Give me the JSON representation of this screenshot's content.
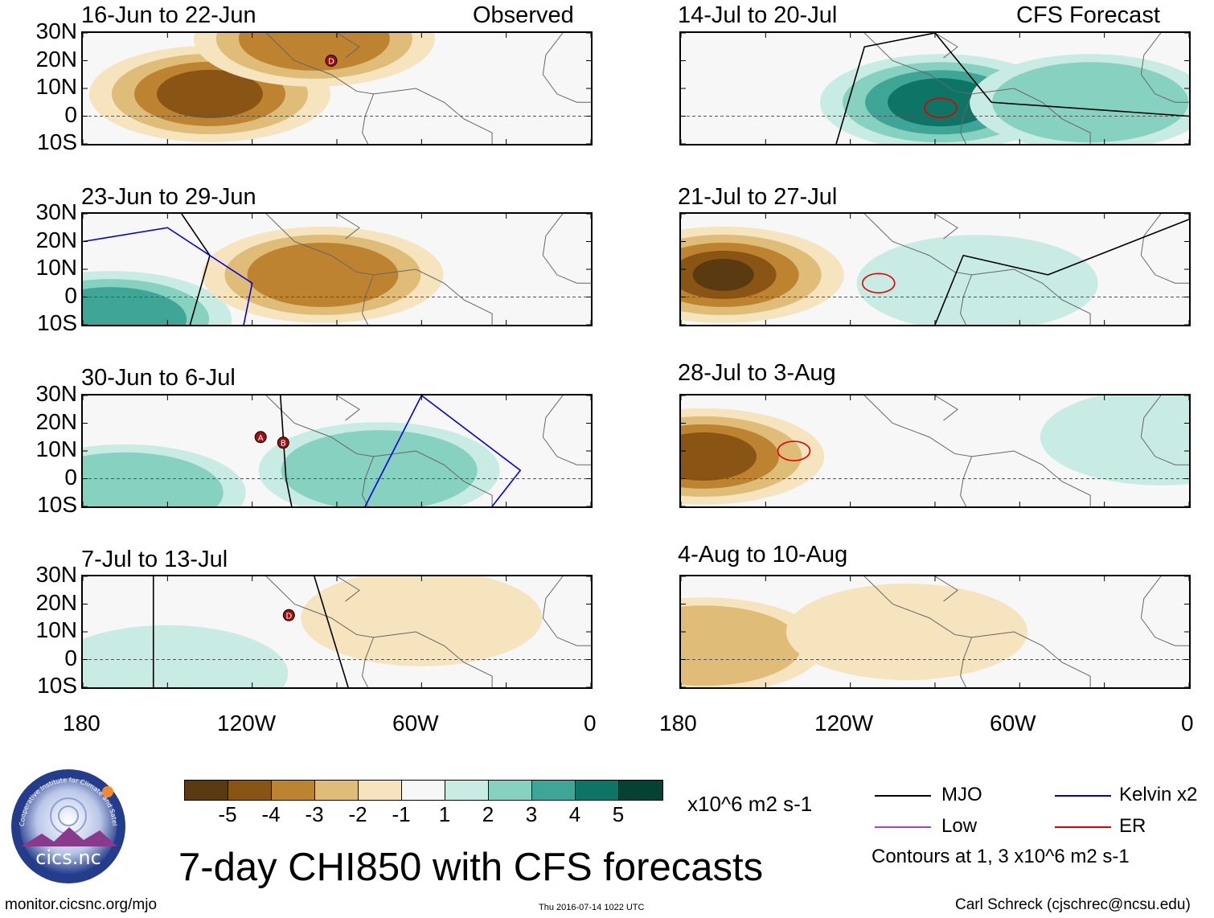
{
  "chart_data": {
    "type": "heatmap",
    "title": "7-day CHI850 with CFS forecasts",
    "variable": "CHI850",
    "units": "x10^6 m2 s-1",
    "columns": [
      {
        "tag": "Observed",
        "panels": [
          {
            "period": "16-Jun to 22-Jun",
            "anomaly_centers": [
              {
                "lon": -135,
                "lat": 8,
                "value": -4
              },
              {
                "lon": -98,
                "lat": 28,
                "value": -3
              }
            ],
            "filters": [
              {
                "type": "MJO",
                "note": "none"
              },
              {
                "type": "Low",
                "label": "D",
                "lon": -92,
                "lat": 20
              }
            ]
          },
          {
            "period": "23-Jun to 29-Jun",
            "anomaly_centers": [
              {
                "lon": -170,
                "lat": -8,
                "value": 3
              },
              {
                "lon": -95,
                "lat": 8,
                "value": -3
              }
            ],
            "filters": [
              {
                "type": "MJO",
                "lon_path": [
                  [
                    -145,
                    30
                  ],
                  [
                    -135,
                    15
                  ],
                  [
                    -142,
                    -10
                  ]
                ]
              },
              {
                "type": "Kelvin",
                "lon_path": [
                  [
                    -180,
                    20
                  ],
                  [
                    -150,
                    25
                  ],
                  [
                    -120,
                    5
                  ],
                  [
                    -123,
                    -10
                  ]
                ]
              }
            ]
          },
          {
            "period": "30-Jun to 6-Jul",
            "anomaly_centers": [
              {
                "lon": -75,
                "lat": 3,
                "value": 2
              },
              {
                "lon": -165,
                "lat": -5,
                "value": 2
              }
            ],
            "filters": [
              {
                "type": "MJO",
                "lon_path": [
                  [
                    -110,
                    30
                  ],
                  [
                    -108,
                    0
                  ],
                  [
                    -106,
                    -10
                  ]
                ]
              },
              {
                "type": "Kelvin",
                "lon_path": [
                  [
                    -80,
                    -10
                  ],
                  [
                    -60,
                    30
                  ],
                  [
                    -25,
                    3
                  ],
                  [
                    -35,
                    -10
                  ]
                ]
              },
              {
                "type": "Low",
                "label": "A",
                "lon": -117,
                "lat": 15
              },
              {
                "type": "Low",
                "label": "B",
                "lon": -109,
                "lat": 13
              }
            ]
          },
          {
            "period": "7-Jul to 13-Jul",
            "anomaly_centers": [
              {
                "lon": -60,
                "lat": 15,
                "value": -1
              },
              {
                "lon": -150,
                "lat": -5,
                "value": 1
              }
            ],
            "filters": [
              {
                "type": "MJO",
                "lon_path": [
                  [
                    -155,
                    30
                  ],
                  [
                    -155,
                    -10
                  ]
                ]
              },
              {
                "type": "MJO",
                "lon_path": [
                  [
                    -98,
                    30
                  ],
                  [
                    -86,
                    -10
                  ]
                ]
              },
              {
                "type": "Low",
                "label": "D",
                "lon": -107,
                "lat": 16
              }
            ]
          }
        ]
      },
      {
        "tag": "CFS Forecast",
        "panels": [
          {
            "period": "14-Jul to 20-Jul",
            "anomaly_centers": [
              {
                "lon": -88,
                "lat": 5,
                "value": 4
              },
              {
                "lon": -35,
                "lat": 5,
                "value": 2
              }
            ],
            "filters": [
              {
                "type": "MJO",
                "lon_path": [
                  [
                    -125,
                    -10
                  ],
                  [
                    -115,
                    25
                  ],
                  [
                    -90,
                    30
                  ],
                  [
                    -70,
                    5
                  ],
                  [
                    0,
                    0
                  ]
                ]
              },
              {
                "type": "ER",
                "lon": -88,
                "lat": 3
              }
            ]
          },
          {
            "period": "21-Jul to 27-Jul",
            "anomaly_centers": [
              {
                "lon": -165,
                "lat": 8,
                "value": -5
              },
              {
                "lon": -75,
                "lat": 5,
                "value": 1
              }
            ],
            "filters": [
              {
                "type": "MJO",
                "lon_path": [
                  [
                    -90,
                    -10
                  ],
                  [
                    -80,
                    15
                  ],
                  [
                    -50,
                    8
                  ],
                  [
                    0,
                    28
                  ]
                ]
              },
              {
                "type": "ER",
                "lon": -110,
                "lat": 5
              }
            ]
          },
          {
            "period": "28-Jul to 3-Aug",
            "anomaly_centers": [
              {
                "lon": -172,
                "lat": 8,
                "value": -4
              },
              {
                "lon": -10,
                "lat": 15,
                "value": 1
              }
            ],
            "filters": [
              {
                "type": "ER",
                "lon": -140,
                "lat": 10
              }
            ]
          },
          {
            "period": "4-Aug to 10-Aug",
            "anomaly_centers": [
              {
                "lon": -172,
                "lat": 5,
                "value": -2
              },
              {
                "lon": -100,
                "lat": 10,
                "value": -1
              }
            ],
            "filters": []
          }
        ]
      }
    ],
    "lat_ticks": [
      "30N",
      "20N",
      "10N",
      "0",
      "10S"
    ],
    "ylim": [
      -10,
      30
    ],
    "lon_ticks": [
      "180",
      "120W",
      "60W",
      "0"
    ],
    "xlim": [
      -180,
      0
    ],
    "colorbar": {
      "ticks": [
        "-5",
        "-4",
        "-3",
        "-2",
        "-1",
        "1",
        "2",
        "3",
        "4",
        "5"
      ],
      "colors": [
        "#5a3a10",
        "#8a5514",
        "#bd8330",
        "#dfbd79",
        "#f5e4bd",
        "#f7f7f7",
        "#c8ebe3",
        "#87d1c1",
        "#3fa596",
        "#0d7466",
        "#064234"
      ]
    },
    "legend": [
      {
        "label": "MJO",
        "color": "#000000"
      },
      {
        "label": "Kelvin x2",
        "color": "#0000dd"
      },
      {
        "label": "Low",
        "color": "#a040e0"
      },
      {
        "label": "ER",
        "color": "#dd0000"
      }
    ],
    "contour_note": "Contours at 1, 3 x10^6 m2 s-1"
  },
  "logo": {
    "text": "cics.nc",
    "ring_text": "Cooperative Institute for Climate and Satellites"
  },
  "footer": {
    "left": "monitor.cicsnc.org/mjo",
    "center": "Thu 2016-07-14 1022 UTC",
    "right": "Carl Schreck (cjschrec@ncsu.edu)"
  }
}
